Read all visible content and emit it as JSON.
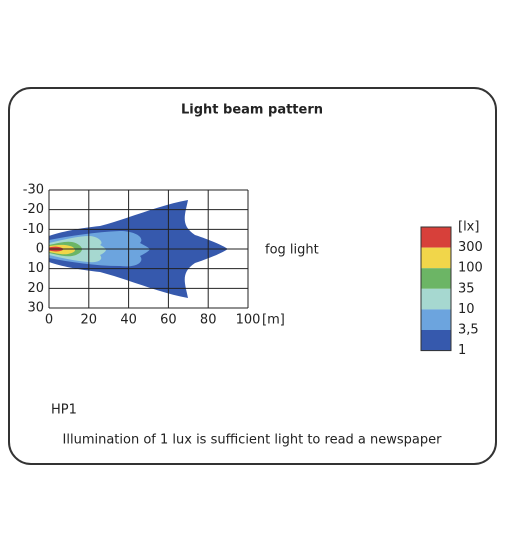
{
  "title": "Light beam pattern",
  "x_axis": {
    "ticks": [
      0,
      20,
      40,
      60,
      80,
      100
    ],
    "unit": "[m]",
    "lim": [
      0,
      100
    ]
  },
  "y_axis": {
    "ticks": [
      -30,
      -20,
      -10,
      0,
      10,
      20,
      30
    ],
    "lim": [
      -30,
      30
    ]
  },
  "series_label": "fog light",
  "legend": {
    "unit": "[lx]",
    "colors": [
      "#d7403a",
      "#f1d64a",
      "#6cb565",
      "#a6d8d0",
      "#6ca4de",
      "#3659ad"
    ],
    "labels": [
      "300",
      "100",
      "35",
      "10",
      "3,5",
      "1"
    ]
  },
  "code": "HP1",
  "note": "Illumination of 1 lux is sufficient light to read a newspaper"
}
